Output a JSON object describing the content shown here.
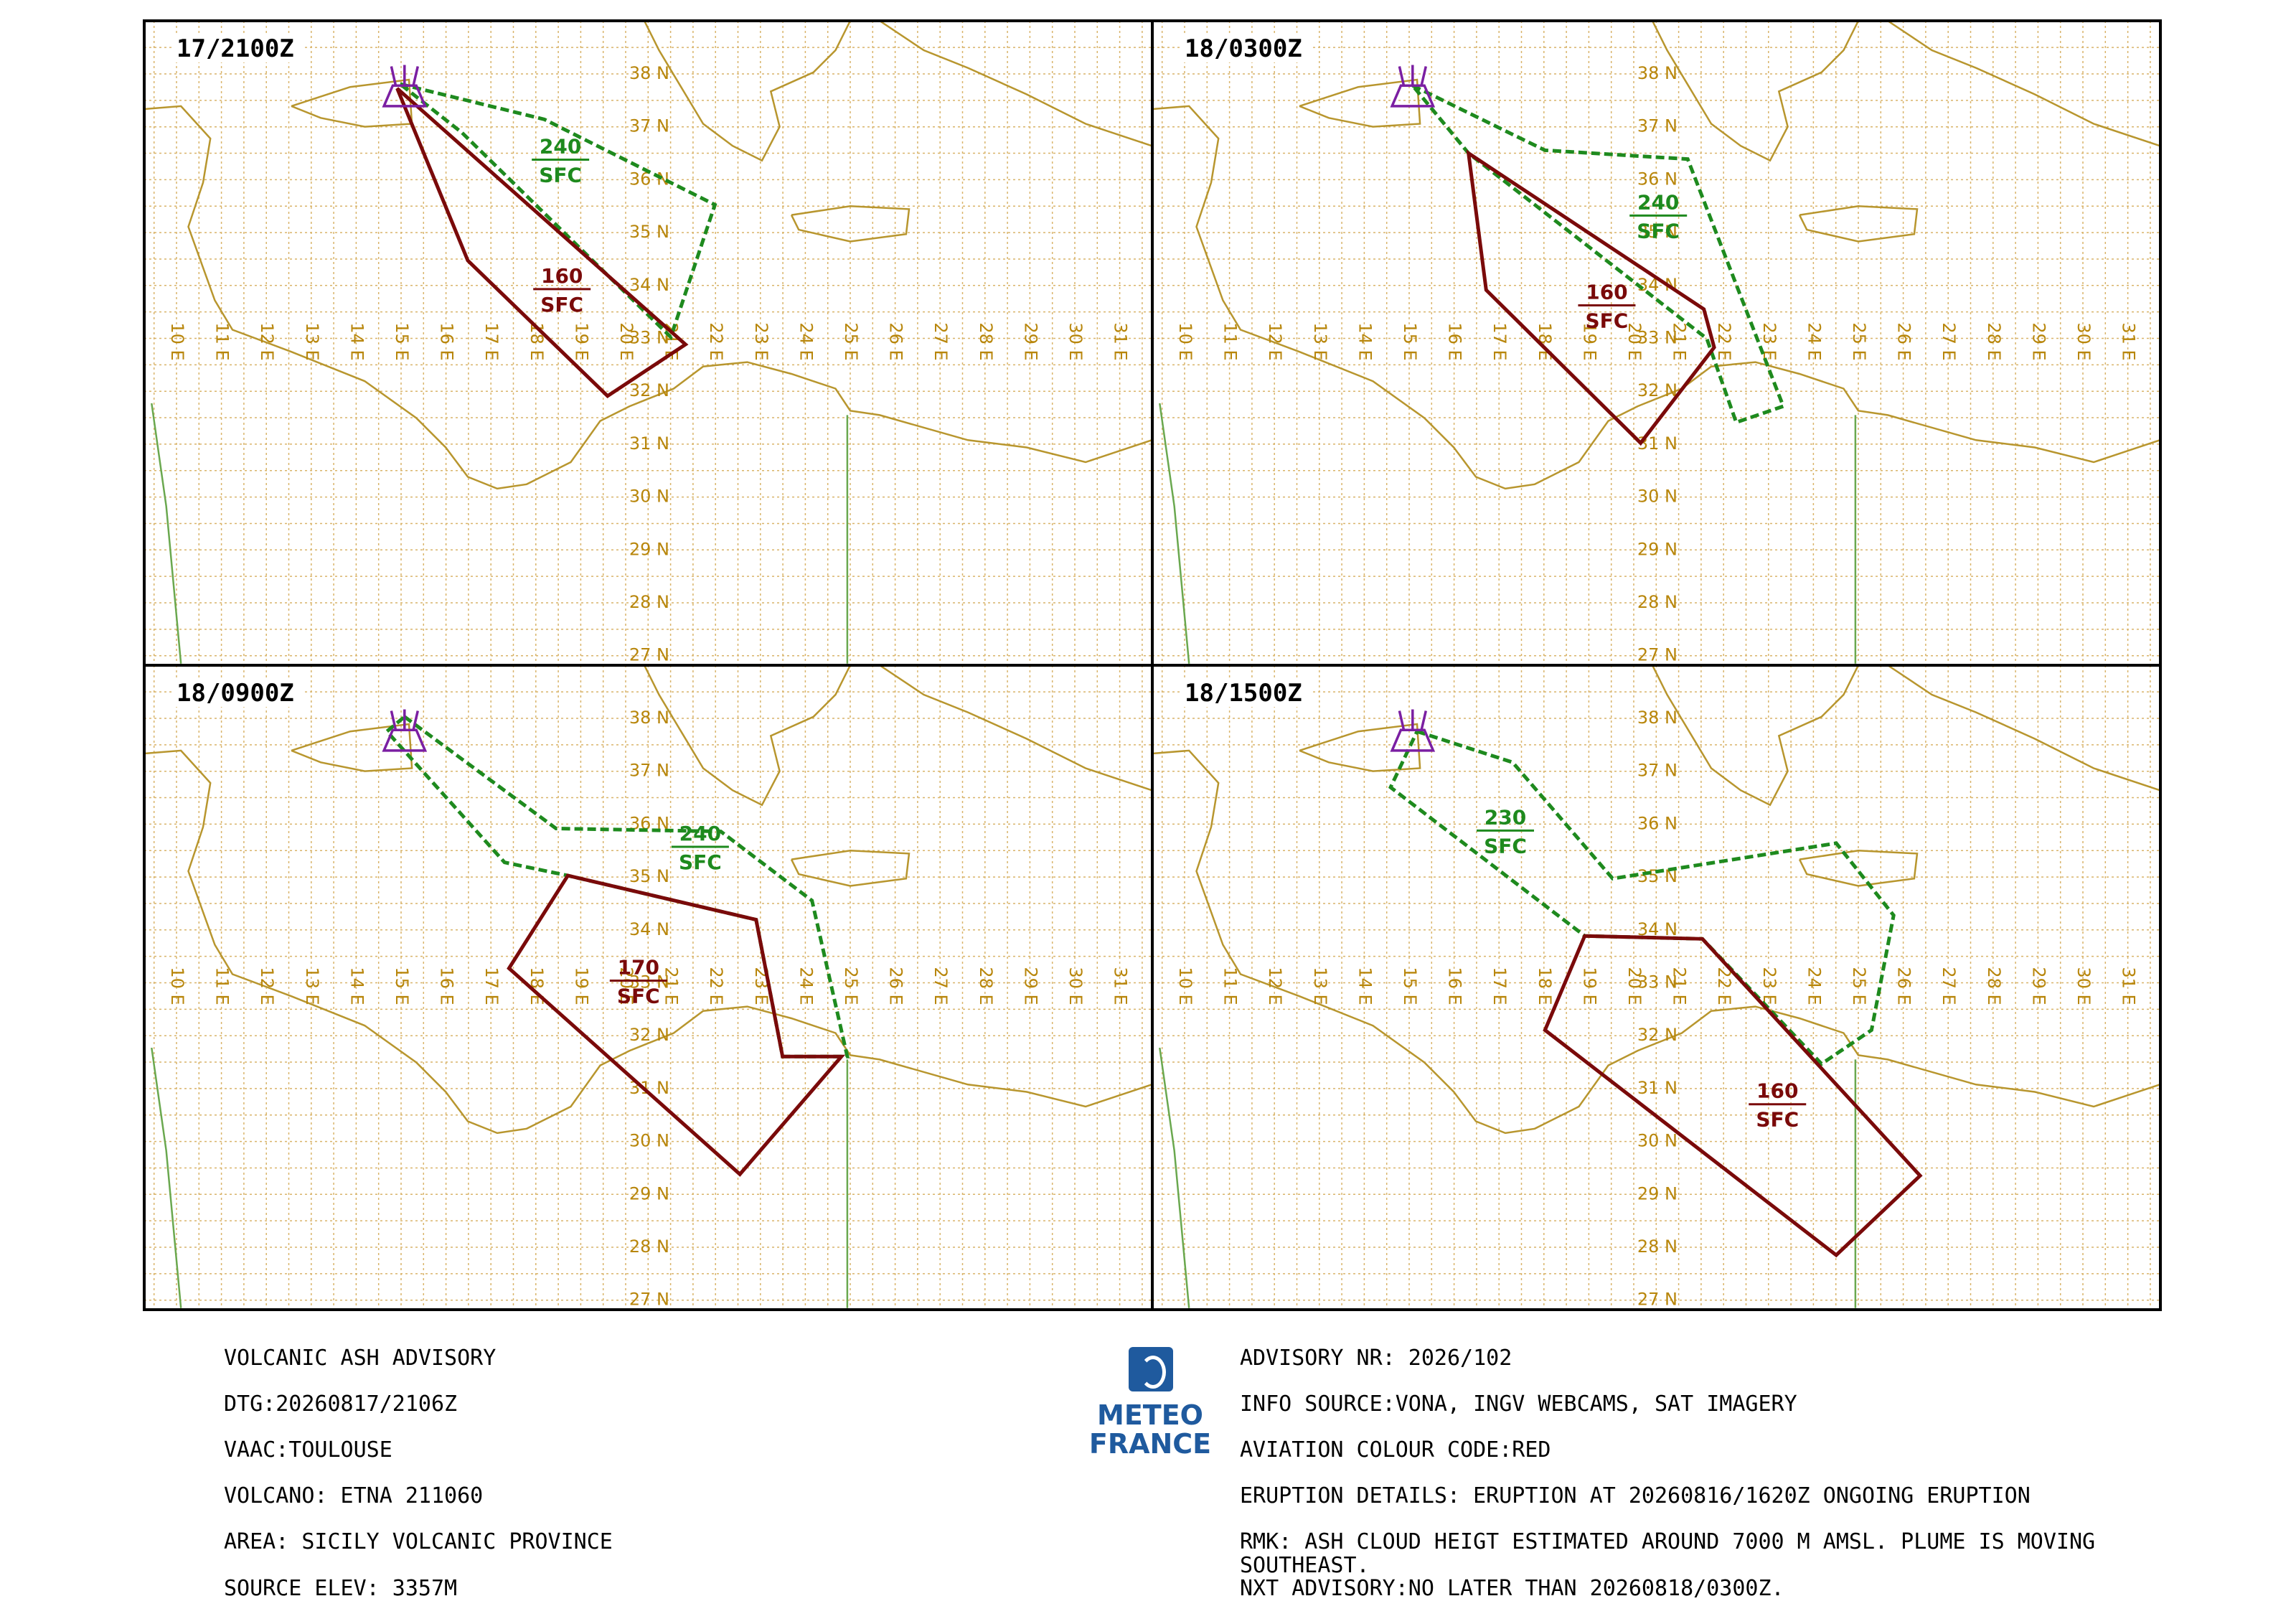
{
  "panels": [
    {
      "time": "17/2100Z",
      "ash_labels": [
        {
          "level": "240",
          "base": "SFC"
        },
        {
          "level": "160",
          "base": "SFC"
        }
      ]
    },
    {
      "time": "18/0300Z",
      "ash_labels": [
        {
          "level": "240",
          "base": "SFC"
        },
        {
          "level": "160",
          "base": "SFC"
        }
      ]
    },
    {
      "time": "18/0900Z",
      "ash_labels": [
        {
          "level": "240",
          "base": "SFC"
        },
        {
          "level": "170",
          "base": "SFC"
        }
      ]
    },
    {
      "time": "18/1500Z",
      "ash_labels": [
        {
          "level": "230",
          "base": "SFC"
        },
        {
          "level": "160",
          "base": "SFC"
        }
      ]
    }
  ],
  "grid": {
    "lat_labels": [
      "38 N",
      "37 N",
      "36 N",
      "35 N",
      "34 N",
      "33 N",
      "32 N",
      "31 N",
      "30 N",
      "29 N",
      "28 N",
      "27 N"
    ],
    "lon_labels": [
      "10 E",
      "11 E",
      "12 E",
      "13 E",
      "14 E",
      "15 E",
      "16 E",
      "17 E",
      "18 E",
      "19 E",
      "20 E",
      "21 E",
      "22 E",
      "23 E",
      "24 E",
      "25 E",
      "26 E",
      "27 E",
      "28 E",
      "29 E",
      "30 E",
      "31 E"
    ]
  },
  "logo": {
    "line1": "METEO",
    "line2": "FRANCE"
  },
  "advisory": {
    "left": [
      "VOLCANIC ASH ADVISORY",
      "DTG:20260817/2106Z",
      "VAAC:TOULOUSE",
      "VOLCANO: ETNA 211060",
      "AREA: SICILY VOLCANIC PROVINCE",
      "SOURCE ELEV: 3357M"
    ],
    "right": [
      "ADVISORY NR: 2026/102",
      "INFO SOURCE:VONA, INGV WEBCAMS, SAT IMAGERY",
      "AVIATION COLOUR CODE:RED",
      "ERUPTION DETAILS: ERUPTION AT 20260816/1620Z ONGOING ERUPTION",
      "RMK: ASH CLOUD HEIGT ESTIMATED AROUND 7000 M AMSL. PLUME IS MOVING SOUTHEAST.",
      "NXT ADVISORY:NO LATER THAN 20260818/0300Z."
    ]
  }
}
